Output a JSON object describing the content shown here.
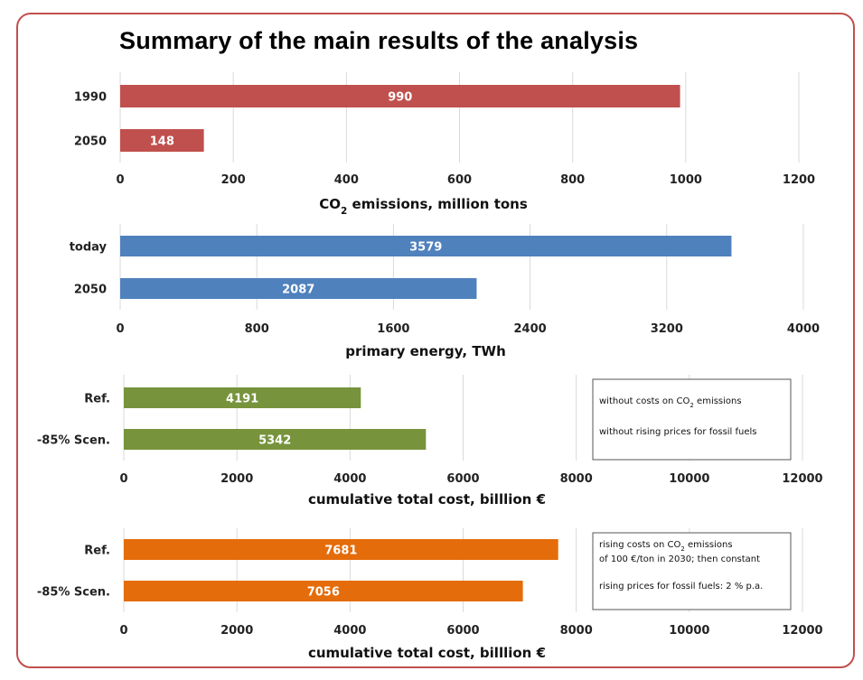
{
  "title": "Summary of the main results of the analysis",
  "chart_data": [
    {
      "type": "bar",
      "orientation": "horizontal",
      "categories": [
        "1990",
        "2050"
      ],
      "values": [
        990,
        148
      ],
      "color": "#c0504d",
      "xlim": [
        0,
        1200
      ],
      "xticks": [
        "0",
        "200",
        "400",
        "600",
        "800",
        "1000",
        "1200"
      ],
      "xlabel": "CO2 emissions, million tons",
      "grid": true
    },
    {
      "type": "bar",
      "orientation": "horizontal",
      "categories": [
        "today",
        "2050"
      ],
      "values": [
        3579,
        2087
      ],
      "color": "#4f81bd",
      "xlim": [
        0,
        4000
      ],
      "xticks": [
        "0",
        "800",
        "1600",
        "2400",
        "3200",
        "4000"
      ],
      "xlabel": "primary energy, TWh",
      "grid": true
    },
    {
      "type": "bar",
      "orientation": "horizontal",
      "categories": [
        "Ref.",
        "-85% Scen."
      ],
      "values": [
        4191,
        5342
      ],
      "color": "#77933c",
      "xlim": [
        0,
        12000
      ],
      "xticks": [
        "0",
        "2000",
        "4000",
        "6000",
        "8000",
        "10000",
        "12000"
      ],
      "xlabel": "cumulative total cost, billlion €",
      "grid": true,
      "note": [
        "without costs on CO2 emissions",
        "without rising prices for fossil fuels"
      ]
    },
    {
      "type": "bar",
      "orientation": "horizontal",
      "categories": [
        "Ref.",
        "-85% Scen."
      ],
      "values": [
        7681,
        7056
      ],
      "color": "#e46c0a",
      "xlim": [
        0,
        12000
      ],
      "xticks": [
        "0",
        "2000",
        "4000",
        "6000",
        "8000",
        "10000",
        "12000"
      ],
      "xlabel": "cumulative total cost, billlion €",
      "grid": true,
      "note": [
        "rising costs on CO2 emissions",
        "of 100 €/ton in 2030; then constant",
        "rising prices for fossil fuels:  2 % p.a."
      ]
    }
  ]
}
